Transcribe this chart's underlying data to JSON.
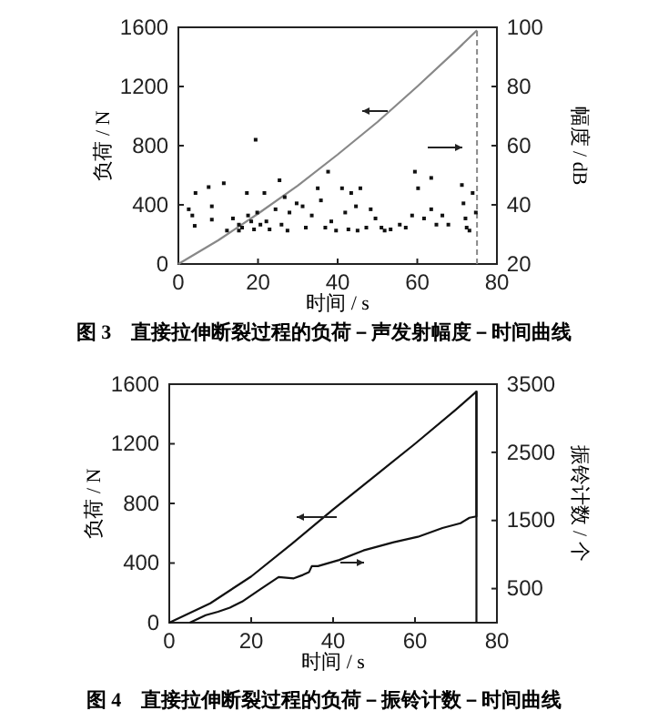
{
  "chart_data": [
    {
      "type": "line",
      "title": "图 3　直接拉伸断裂过程的负荷－声发射幅度－时间曲线",
      "xlabel": "时间 / s",
      "ylabel": "负荷 / N",
      "y2label": "幅度 / dB",
      "xlim": [
        0,
        80
      ],
      "xticks": [
        0,
        20,
        40,
        60,
        80
      ],
      "ylim": [
        0,
        1600
      ],
      "yticks": [
        0,
        400,
        800,
        1200,
        1600
      ],
      "y2lim": [
        20,
        100
      ],
      "y2ticks": [
        20,
        40,
        60,
        80,
        100
      ],
      "grid": false,
      "ref_lines": [
        {
          "axis": "x",
          "value": 75,
          "color": "#888888",
          "line_style": "dashed"
        }
      ],
      "series": [
        {
          "color": "#888888",
          "x": [
            0,
            10,
            20,
            30,
            40,
            50,
            60,
            70,
            75
          ],
          "values": [
            0,
            160,
            340,
            530,
            740,
            960,
            1200,
            1450,
            1580
          ]
        },
        {
          "type": "scatter",
          "axis": "y2",
          "color": "#111111",
          "marker": "square",
          "x": [
            2.6,
            3.5,
            4.1,
            4.3,
            7.6,
            8.4,
            8.4,
            11.4,
            12.2,
            13.7,
            15.2,
            15.2,
            16,
            17.2,
            17.5,
            18.3,
            19,
            19.4,
            19.8,
            20.6,
            21.6,
            22.1,
            22.9,
            24.4,
            25.4,
            25.9,
            26.7,
            27.4,
            27.9,
            29.7,
            31.2,
            32,
            33.5,
            35,
            35.8,
            36.9,
            37.6,
            38.4,
            39.6,
            41.1,
            41.9,
            42.7,
            43.4,
            44.6,
            45,
            45.7,
            47.2,
            48.3,
            49.5,
            51,
            51.8,
            53.3,
            55.6,
            57.1,
            58.7,
            59.4,
            60.2,
            61.7,
            63.5,
            63.5,
            64.8,
            66.3,
            67.8,
            71.2,
            71.6,
            72.1,
            72.4,
            73.1,
            73.9,
            74.7
          ],
          "values": [
            38.5,
            36.4,
            32.9,
            44,
            46,
            39.5,
            35,
            47.3,
            31.3,
            35.4,
            33.3,
            31.3,
            32.3,
            44,
            36.4,
            34.4,
            31.7,
            62,
            37.4,
            33.3,
            44,
            34.4,
            31.7,
            38.5,
            48.3,
            33.3,
            42.6,
            31.3,
            37.4,
            40.5,
            39.5,
            32.3,
            36.4,
            45.6,
            41.5,
            32.3,
            51.2,
            34.4,
            31.3,
            45.6,
            37.4,
            31.7,
            44,
            39.5,
            31.3,
            45.6,
            32.3,
            38.5,
            35.4,
            32.3,
            31.3,
            31.7,
            33.3,
            32.3,
            36.4,
            51.2,
            45.6,
            35.4,
            49.1,
            38.5,
            33.3,
            36.4,
            33.3,
            46.7,
            40.5,
            35.4,
            32.3,
            31.3,
            44,
            37.4
          ]
        }
      ]
    },
    {
      "type": "line",
      "title": "图 4　直接拉伸断裂过程的负荷－振铃计数－时间曲线",
      "xlabel": "时间 / s",
      "ylabel": "负荷 / N",
      "y2label": "振铃计数 / 个",
      "xlim": [
        0,
        80
      ],
      "xticks": [
        0,
        20,
        40,
        60,
        80
      ],
      "ylim": [
        0,
        1600
      ],
      "yticks": [
        0,
        400,
        800,
        1200,
        1600
      ],
      "y2lim": [
        0,
        3500
      ],
      "y2ticks": [
        500,
        1500,
        2500,
        3500
      ],
      "grid": false,
      "series": [
        {
          "color": "#111111",
          "x": [
            0,
            10,
            20,
            30,
            40,
            50,
            60,
            70,
            75,
            75
          ],
          "values": [
            0,
            130,
            310,
            530,
            760,
            980,
            1200,
            1430,
            1550,
            0
          ]
        },
        {
          "axis": "y2",
          "color": "#111111",
          "x": [
            5,
            8.9,
            11.9,
            14.8,
            17.8,
            22.2,
            26.7,
            30.4,
            32.6,
            34.1,
            34.8,
            36.3,
            41.5,
            47.4,
            54.8,
            60.7,
            66.7,
            71.1,
            73.3,
            75,
            75
          ],
          "values": [
            0,
            110,
            160,
            220,
            310,
            490,
            670,
            650,
            700,
            740,
            830,
            830,
            920,
            1060,
            1180,
            1260,
            1390,
            1460,
            1540,
            1560,
            3400
          ]
        }
      ]
    }
  ]
}
